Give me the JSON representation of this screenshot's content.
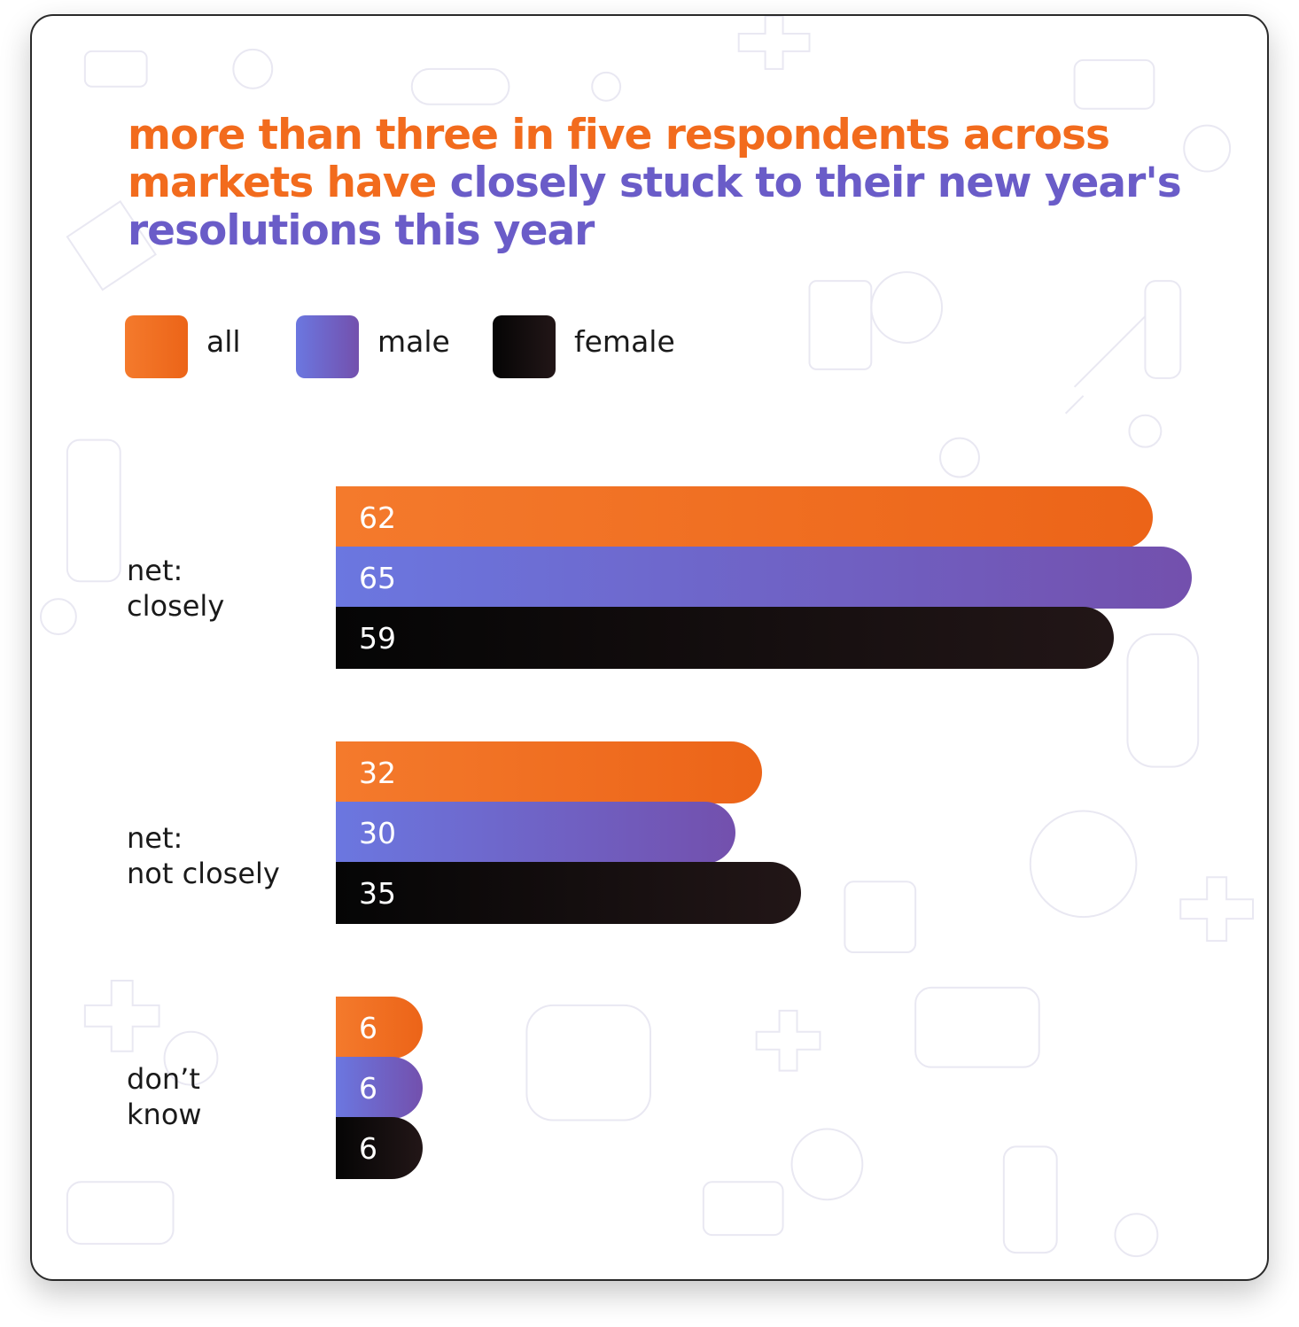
{
  "title": {
    "part1": "more than three in five respondents across markets have ",
    "part2": "closely stuck to their new year's resolutions this year"
  },
  "legend": [
    {
      "key": "all",
      "label": "all"
    },
    {
      "key": "male",
      "label": "male"
    },
    {
      "key": "female",
      "label": "female"
    }
  ],
  "colors": {
    "orange": "#f26b1d",
    "purple": "#6a5cc8",
    "black": "#111111"
  },
  "chart_data": {
    "type": "bar",
    "orientation": "horizontal",
    "title": "more than three in five respondents across markets have closely stuck to their new year's resolutions this year",
    "categories": [
      {
        "line1": "net:",
        "line2": "closely"
      },
      {
        "line1": "net:",
        "line2": "not closely"
      },
      {
        "line1": "don’t",
        "line2": "know"
      }
    ],
    "series": [
      {
        "name": "all",
        "values": [
          62,
          32,
          6
        ]
      },
      {
        "name": "male",
        "values": [
          65,
          30,
          6
        ]
      },
      {
        "name": "female",
        "values": [
          59,
          35,
          6
        ]
      }
    ],
    "xlim": [
      0,
      65
    ],
    "unit": "%"
  }
}
